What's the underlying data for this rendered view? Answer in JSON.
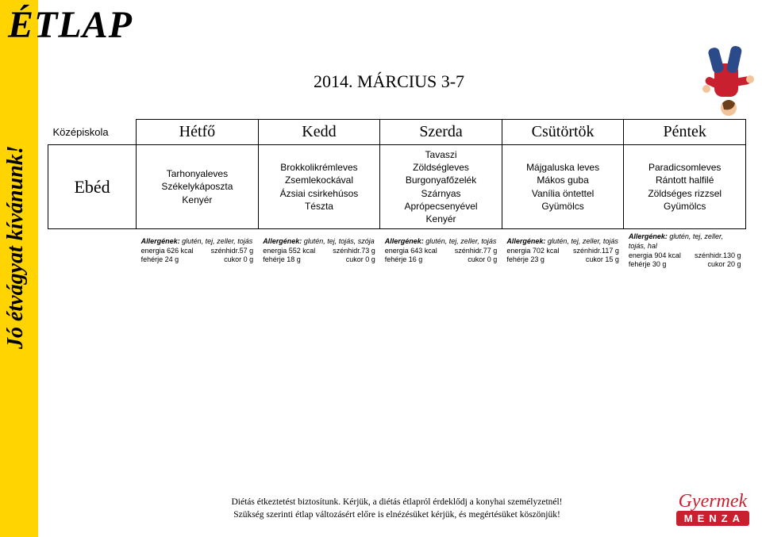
{
  "title": "ÉTLAP",
  "vertical_text": "Jó étvágyat kívánunk!",
  "date_range": "2014. MÁRCIUS 3-7",
  "school_label": "Középiskola",
  "meal_label": "Ebéd",
  "days": [
    "Hétfő",
    "Kedd",
    "Szerda",
    "Csütörtök",
    "Péntek"
  ],
  "menus": [
    "Tarhonyaleves\nSzékelykáposzta\nKenyér",
    "Brokkolikrémleves\nZsemlekockával\nÁzsiai csirkehúsos\nTészta",
    "Tavaszi\nZöldségleves\nBurgonyafőzelék\nSzárnyas\nAprópecsenyével\nKenyér",
    "Májgaluska leves\nMákos guba\nVanília öntettel\nGyümölcs",
    "Paradicsomleves\nRántott halfilé\nZöldséges rizzsel\nGyümölcs"
  ],
  "info": [
    {
      "allergens_label": "Allergének:",
      "allergens": " glutén, tej, zeller, tojás",
      "energy": "energia 626 kcal",
      "carb": "szénhidr.57 g",
      "protein": "fehérje 24 g",
      "sugar": "cukor 0 g"
    },
    {
      "allergens_label": "Allergének:",
      "allergens": " glutén, tej, tojás, szója",
      "energy": "energia 552 kcal",
      "carb": "szénhidr.73 g",
      "protein": "fehérje 18 g",
      "sugar": "cukor 0 g"
    },
    {
      "allergens_label": "Allergének:",
      "allergens": " glutén, tej, zeller, tojás",
      "energy": "energia 643 kcal",
      "carb": "szénhidr.77 g",
      "protein": "fehérje 16 g",
      "sugar": "cukor 0 g"
    },
    {
      "allergens_label": "Allergének:",
      "allergens": " glutén, tej, zeller, tojás",
      "energy": "energia 702 kcal",
      "carb": "szénhidr.117 g",
      "protein": "fehérje 23 g",
      "sugar": "cukor 15 g"
    },
    {
      "allergens_label": "Allergének:",
      "allergens": " glutén, tej, zeller, tojás, hal",
      "energy": "energia 904 kcal",
      "carb": "szénhidr.130 g",
      "protein": "fehérje 30 g",
      "sugar": "cukor 20 g"
    }
  ],
  "footer_line1": "Diétás étkeztetést biztosítunk. Kérjük, a diétás étlapról érdeklődj a konyhai személyzetnél!",
  "footer_line2": "Szükség szerinti étlap változásért előre is elnézésüket kérjük, és megértésüket köszönjük!",
  "logo_top": "Gyermek",
  "logo_bot": "MENZA",
  "colors": {
    "yellow": "#ffd400",
    "logo_red": "#c8202f",
    "border": "#000000",
    "text": "#000000",
    "bg": "#ffffff"
  },
  "child_colors": {
    "shirt": "#c8202f",
    "pants": "#2a4a8a",
    "skin": "#f2c49b",
    "hair": "#6b3f1a"
  }
}
